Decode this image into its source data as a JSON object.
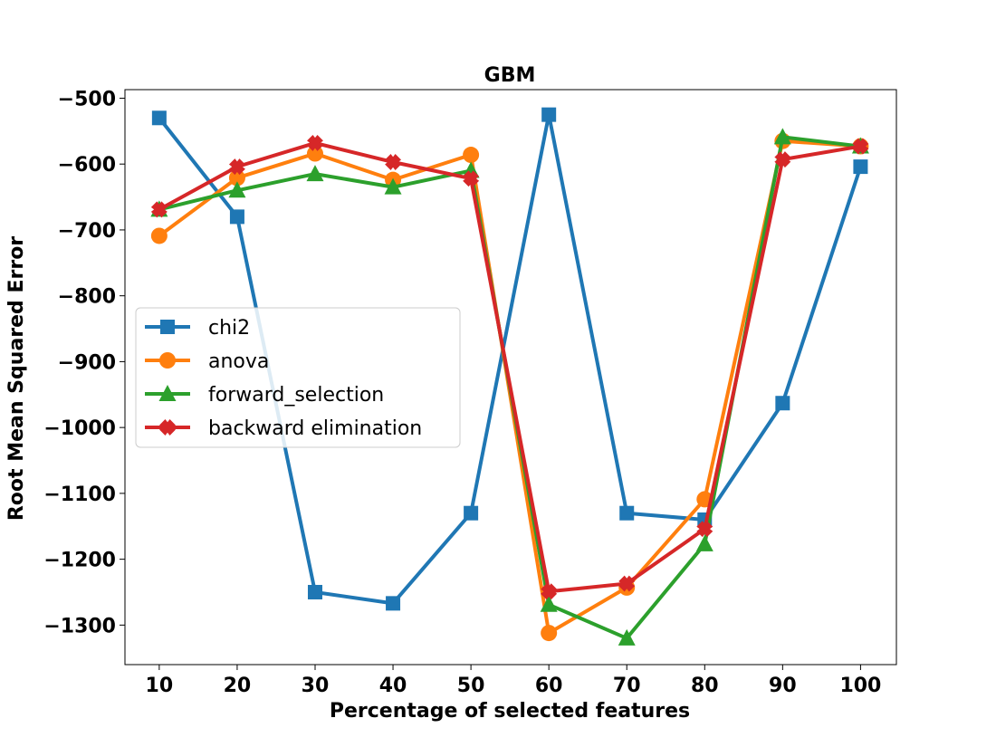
{
  "chart_data": {
    "type": "line",
    "title": "GBM",
    "xlabel": "Percentage of selected features",
    "ylabel": "Root Mean Squared Error",
    "x": [
      10,
      20,
      30,
      40,
      50,
      60,
      70,
      80,
      90,
      100
    ],
    "xticks": [
      "10",
      "20",
      "30",
      "40",
      "50",
      "60",
      "70",
      "80",
      "90",
      "100"
    ],
    "xlim": [
      5.6,
      104.6
    ],
    "ylim": [
      -1360,
      -487
    ],
    "yticks": [
      -500,
      -600,
      -700,
      -800,
      -900,
      -1000,
      -1100,
      -1200,
      -1300
    ],
    "ytick_labels": [
      "−500",
      "−600",
      "−700",
      "−800",
      "−900",
      "−1000",
      "−1100",
      "−1200",
      "−1300"
    ],
    "grid": false,
    "legend_position": "center-left",
    "series": [
      {
        "name": "chi2",
        "color": "#1f77b4",
        "marker": "square",
        "values": [
          -530,
          -680,
          -1250,
          -1267,
          -1130,
          -525,
          -1130,
          -1140,
          -963,
          -604
        ]
      },
      {
        "name": "anova",
        "color": "#ff7f0e",
        "marker": "circle",
        "values": [
          -709,
          -621,
          -584,
          -624,
          -586,
          -1312,
          -1243,
          -1109,
          -565,
          -573
        ]
      },
      {
        "name": "forward_selection",
        "color": "#2ca02c",
        "marker": "triangle",
        "values": [
          -669,
          -640,
          -615,
          -635,
          -610,
          -1269,
          -1320,
          -1177,
          -559,
          -573
        ]
      },
      {
        "name": "backward elimination",
        "color": "#d62728",
        "marker": "x",
        "values": [
          -669,
          -604,
          -568,
          -597,
          -622,
          -1249,
          -1237,
          -1154,
          -593,
          -573
        ]
      }
    ]
  }
}
